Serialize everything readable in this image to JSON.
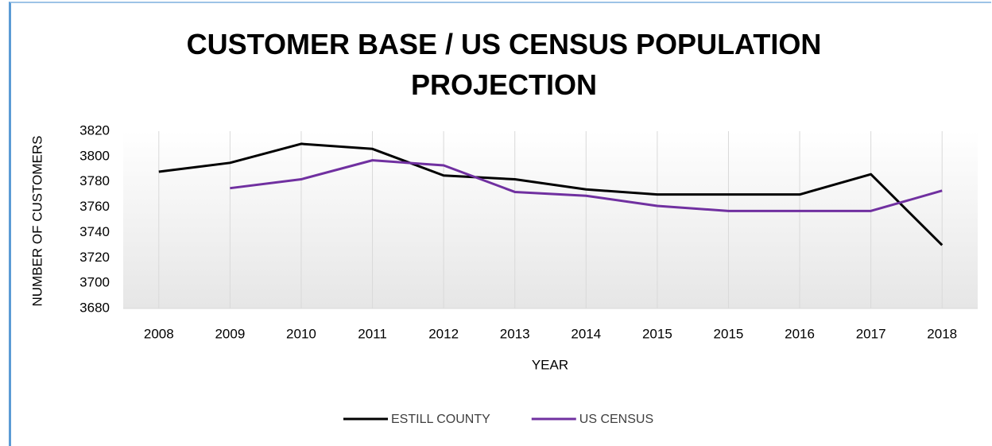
{
  "chart_data": {
    "type": "line",
    "title": "CUSTOMER BASE / US CENSUS POPULATION PROJECTION",
    "x_label": "YEAR",
    "y_label": "NUMBER OF CUSTOMERS",
    "categories": [
      "2008",
      "2009",
      "2010",
      "2011",
      "2012",
      "2013",
      "2014",
      "2015",
      "2015",
      "2016",
      "2017",
      "2018"
    ],
    "series": [
      {
        "name": "ESTILL COUNTY",
        "color": "#000000",
        "values": [
          3788,
          3795,
          3810,
          3806,
          3785,
          3782,
          3774,
          3770,
          3770,
          3770,
          3786,
          3730
        ]
      },
      {
        "name": "US CENSUS",
        "color": "#7030a0",
        "values": [
          null,
          3775,
          3782,
          3797,
          3793,
          3772,
          3769,
          3761,
          3757,
          3757,
          3757,
          3773
        ]
      }
    ],
    "ylim": [
      3680,
      3820
    ],
    "yticks": [
      3680,
      3700,
      3720,
      3740,
      3760,
      3780,
      3800,
      3820
    ],
    "grid": true,
    "legend": "bottom"
  }
}
